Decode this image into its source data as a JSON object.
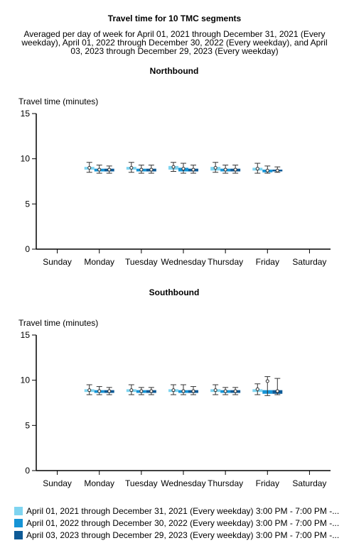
{
  "title": "Travel time for 10 TMC segments",
  "subtitle": "Averaged per day of week for April 01, 2021 through December 31, 2021 (Every weekday), April 01, 2022 through December 30, 2022 (Every weekday), and April 03, 2023 through December 29, 2023 (Every weekday)",
  "colors": [
    "#7fd4f0",
    "#1594d6",
    "#0d5a96"
  ],
  "chart_data": [
    {
      "type": "boxplot",
      "title": "Northbound",
      "ylabel": "Travel time (minutes)",
      "ylim": [
        0,
        15
      ],
      "yticks": [
        "0",
        "5",
        "10",
        "15"
      ],
      "categories": [
        "Sunday",
        "Monday",
        "Tuesday",
        "Wednesday",
        "Thursday",
        "Friday",
        "Saturday"
      ],
      "series": [
        {
          "name": "April 01, 2021 through December 31, 2021 (Every weekday) 3:00 PM - 7:00 PM -...",
          "values": [
            null,
            {
              "q1": 8.8,
              "q3": 9.1,
              "median": 9.0,
              "mean": 9.0,
              "min": 8.5,
              "max": 9.6
            },
            {
              "q1": 8.8,
              "q3": 9.1,
              "median": 9.0,
              "mean": 9.0,
              "min": 8.5,
              "max": 9.6
            },
            {
              "q1": 8.8,
              "q3": 9.2,
              "median": 9.0,
              "mean": 9.1,
              "min": 8.6,
              "max": 9.6
            },
            {
              "q1": 8.7,
              "q3": 9.1,
              "median": 8.9,
              "mean": 9.0,
              "min": 8.5,
              "max": 9.6
            },
            {
              "q1": 8.7,
              "q3": 9.0,
              "median": 8.9,
              "mean": 8.9,
              "min": 8.4,
              "max": 9.5
            },
            null
          ]
        },
        {
          "name": "April 01, 2022 through December 30, 2022 (Every weekday) 3:00 PM - 7:00 PM -...",
          "values": [
            null,
            {
              "q1": 8.6,
              "q3": 8.9,
              "median": 8.8,
              "mean": 8.8,
              "min": 8.4,
              "max": 9.3
            },
            {
              "q1": 8.6,
              "q3": 8.9,
              "median": 8.8,
              "mean": 8.8,
              "min": 8.4,
              "max": 9.3
            },
            {
              "q1": 8.6,
              "q3": 9.0,
              "median": 8.8,
              "mean": 8.9,
              "min": 8.4,
              "max": 9.5
            },
            {
              "q1": 8.6,
              "q3": 8.9,
              "median": 8.8,
              "mean": 8.8,
              "min": 8.4,
              "max": 9.3
            },
            {
              "q1": 8.5,
              "q3": 8.8,
              "median": 8.7,
              "mean": 8.7,
              "min": 8.4,
              "max": 9.2
            },
            null
          ]
        },
        {
          "name": "April 03, 2023 through December 29, 2023 (Every weekday) 3:00 PM - 7:00 PM -...",
          "values": [
            null,
            {
              "q1": 8.6,
              "q3": 8.9,
              "median": 8.8,
              "mean": 8.8,
              "min": 8.4,
              "max": 9.2
            },
            {
              "q1": 8.6,
              "q3": 8.9,
              "median": 8.8,
              "mean": 8.8,
              "min": 8.4,
              "max": 9.3
            },
            {
              "q1": 8.6,
              "q3": 8.9,
              "median": 8.8,
              "mean": 8.8,
              "min": 8.4,
              "max": 9.3
            },
            {
              "q1": 8.6,
              "q3": 8.9,
              "median": 8.8,
              "mean": 8.8,
              "min": 8.4,
              "max": 9.3
            },
            {
              "q1": 8.6,
              "q3": 8.8,
              "median": 8.7,
              "mean": 8.7,
              "min": 8.5,
              "max": 9.1
            },
            null
          ]
        }
      ]
    },
    {
      "type": "boxplot",
      "title": "Southbound",
      "ylabel": "Travel time (minutes)",
      "ylim": [
        0,
        15
      ],
      "yticks": [
        "0",
        "5",
        "10",
        "15"
      ],
      "categories": [
        "Sunday",
        "Monday",
        "Tuesday",
        "Wednesday",
        "Thursday",
        "Friday",
        "Saturday"
      ],
      "series": [
        {
          "name": "April 01, 2021 through December 31, 2021 (Every weekday) 3:00 PM - 7:00 PM -...",
          "values": [
            null,
            {
              "q1": 8.7,
              "q3": 9.0,
              "median": 8.9,
              "mean": 8.9,
              "min": 8.4,
              "max": 9.5
            },
            {
              "q1": 8.7,
              "q3": 9.0,
              "median": 8.9,
              "mean": 8.9,
              "min": 8.4,
              "max": 9.5
            },
            {
              "q1": 8.7,
              "q3": 9.0,
              "median": 8.9,
              "mean": 8.9,
              "min": 8.4,
              "max": 9.5
            },
            {
              "q1": 8.7,
              "q3": 9.0,
              "median": 8.9,
              "mean": 8.9,
              "min": 8.4,
              "max": 9.5
            },
            {
              "q1": 8.7,
              "q3": 9.0,
              "median": 8.9,
              "mean": 9.0,
              "min": 8.4,
              "max": 9.6
            },
            null
          ]
        },
        {
          "name": "April 01, 2022 through December 30, 2022 (Every weekday) 3:00 PM - 7:00 PM -...",
          "values": [
            null,
            {
              "q1": 8.6,
              "q3": 8.9,
              "median": 8.8,
              "mean": 8.8,
              "min": 8.4,
              "max": 9.3
            },
            {
              "q1": 8.6,
              "q3": 8.9,
              "median": 8.8,
              "mean": 8.8,
              "min": 8.4,
              "max": 9.2
            },
            {
              "q1": 8.6,
              "q3": 8.9,
              "median": 8.8,
              "mean": 8.8,
              "min": 8.4,
              "max": 9.5
            },
            {
              "q1": 8.6,
              "q3": 8.9,
              "median": 8.8,
              "mean": 8.8,
              "min": 8.4,
              "max": 9.2
            },
            {
              "q1": 8.5,
              "q3": 8.9,
              "median": 8.7,
              "mean": 9.9,
              "min": 8.3,
              "max": 10.4
            },
            null
          ]
        },
        {
          "name": "April 03, 2023 through December 29, 2023 (Every weekday) 3:00 PM - 7:00 PM -...",
          "values": [
            null,
            {
              "q1": 8.6,
              "q3": 8.9,
              "median": 8.8,
              "mean": 8.8,
              "min": 8.4,
              "max": 9.2
            },
            {
              "q1": 8.6,
              "q3": 8.9,
              "median": 8.8,
              "mean": 8.8,
              "min": 8.4,
              "max": 9.2
            },
            {
              "q1": 8.6,
              "q3": 8.9,
              "median": 8.8,
              "mean": 8.8,
              "min": 8.4,
              "max": 9.3
            },
            {
              "q1": 8.6,
              "q3": 8.9,
              "median": 8.8,
              "mean": 8.8,
              "min": 8.4,
              "max": 9.2
            },
            {
              "q1": 8.5,
              "q3": 8.9,
              "median": 8.7,
              "mean": 8.8,
              "min": 8.4,
              "max": 10.2
            },
            null
          ]
        }
      ]
    }
  ]
}
